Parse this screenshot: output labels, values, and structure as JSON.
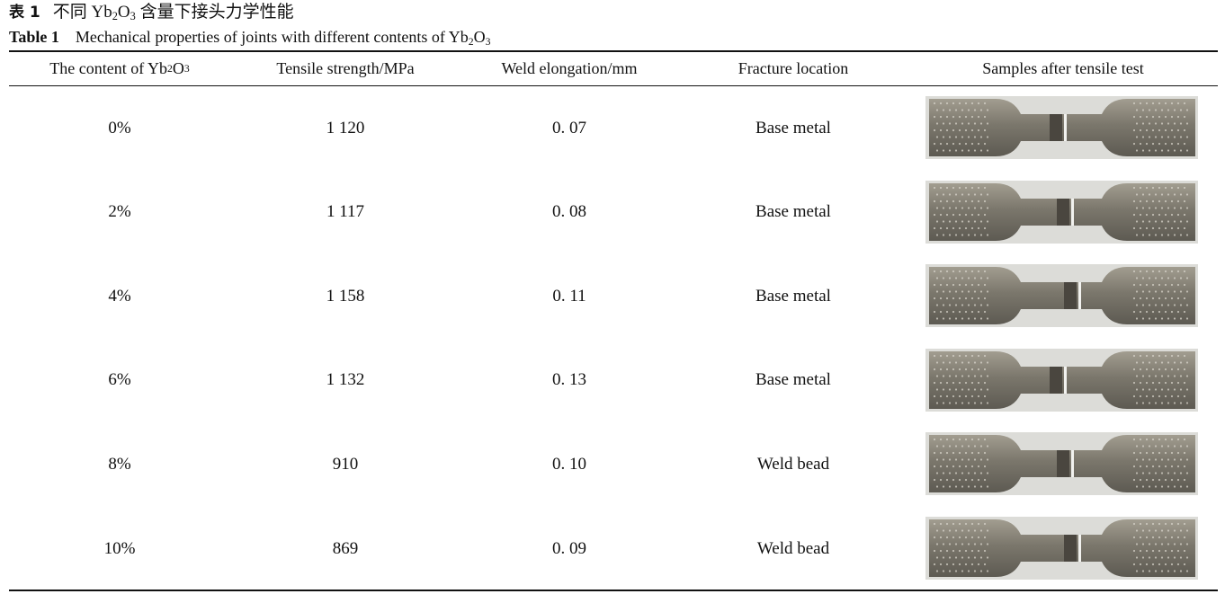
{
  "caption": {
    "cn_label": "表 1",
    "cn_text_before": "不同 Yb",
    "cn_sub1": "2",
    "cn_mid": "O",
    "cn_sub2": "3",
    "cn_text_after": " 含量下接头力学性能",
    "en_label": "Table 1",
    "en_text_before": "Mechanical properties of joints with different contents of Yb",
    "en_sub1": "2",
    "en_mid": "O",
    "en_sub2": "3"
  },
  "table": {
    "headers": {
      "content_before": "The content of Yb",
      "content_sub1": "2",
      "content_mid": "O",
      "content_sub2": "3",
      "tensile": "Tensile strength/MPa",
      "elongation": "Weld elongation/mm",
      "fracture": "Fracture location",
      "samples": "Samples after tensile test"
    },
    "rows": [
      {
        "content": "0%",
        "tensile": "1 120",
        "elongation": "0. 07",
        "fracture": "Base metal",
        "sample_icon": "tensile-specimen-photo"
      },
      {
        "content": "2%",
        "tensile": "1 117",
        "elongation": "0. 08",
        "fracture": "Base metal",
        "sample_icon": "tensile-specimen-photo"
      },
      {
        "content": "4%",
        "tensile": "1 158",
        "elongation": "0. 11",
        "fracture": "Base metal",
        "sample_icon": "tensile-specimen-photo"
      },
      {
        "content": "6%",
        "tensile": "1 132",
        "elongation": "0. 13",
        "fracture": "Base metal",
        "sample_icon": "tensile-specimen-photo"
      },
      {
        "content": "8%",
        "tensile": "910",
        "elongation": "0. 10",
        "fracture": "Weld bead",
        "sample_icon": "tensile-specimen-photo"
      },
      {
        "content": "10%",
        "tensile": "869",
        "elongation": "0. 09",
        "fracture": "Weld bead",
        "sample_icon": "tensile-specimen-photo"
      }
    ]
  },
  "colors": {
    "metal_dark": "#5d5a52",
    "metal_mid": "#7b776c",
    "metal_light": "#a29d90",
    "photo_bg": "#dcdcd8"
  }
}
